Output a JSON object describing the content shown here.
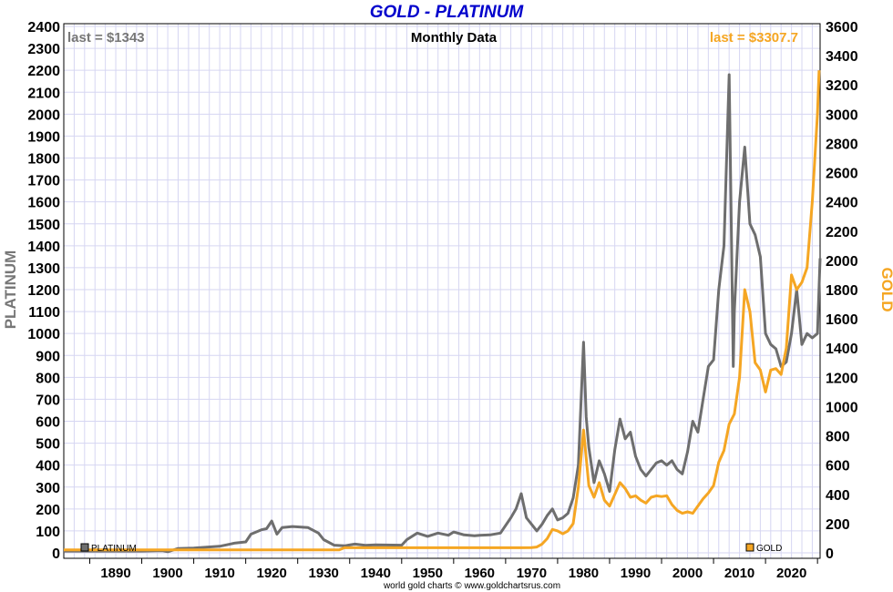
{
  "chart_data": {
    "type": "line",
    "title": "GOLD - PLATINUM",
    "subtitle": "Monthly Data",
    "footer": "world gold charts © www.goldchartsrus.com",
    "x_range": [
      1880,
      2025.5
    ],
    "x_ticks": [
      1890,
      1900,
      1910,
      1920,
      1930,
      1940,
      1950,
      1960,
      1970,
      1980,
      1990,
      2000,
      2010,
      2020
    ],
    "grid": true,
    "left_axis": {
      "label": "PLATINUM",
      "range": [
        0,
        2400
      ],
      "ticks": [
        0,
        100,
        200,
        300,
        400,
        500,
        600,
        700,
        800,
        900,
        1000,
        1100,
        1200,
        1300,
        1400,
        1500,
        1600,
        1700,
        1800,
        1900,
        2000,
        2100,
        2200,
        2300,
        2400
      ]
    },
    "right_axis": {
      "label": "GOLD",
      "range": [
        0,
        3600
      ],
      "ticks": [
        0,
        200,
        400,
        600,
        800,
        1000,
        1200,
        1400,
        1600,
        1800,
        2000,
        2200,
        2400,
        2600,
        2800,
        3000,
        3200,
        3400,
        3600
      ]
    },
    "annotations": {
      "platinum_last": "last = $1343",
      "gold_last": "last = $3307.7"
    },
    "series": [
      {
        "name": "PLATINUM",
        "axis": "left",
        "color": "#6e6e6e",
        "points": [
          [
            1880,
            8
          ],
          [
            1888,
            8
          ],
          [
            1895,
            8
          ],
          [
            1899,
            10
          ],
          [
            1900,
            5
          ],
          [
            1902,
            20
          ],
          [
            1905,
            22
          ],
          [
            1910,
            30
          ],
          [
            1913,
            45
          ],
          [
            1915,
            50
          ],
          [
            1916,
            85
          ],
          [
            1918,
            105
          ],
          [
            1919,
            110
          ],
          [
            1920,
            145
          ],
          [
            1921,
            85
          ],
          [
            1922,
            115
          ],
          [
            1924,
            120
          ],
          [
            1927,
            115
          ],
          [
            1929,
            90
          ],
          [
            1930,
            60
          ],
          [
            1932,
            35
          ],
          [
            1934,
            32
          ],
          [
            1936,
            40
          ],
          [
            1938,
            34
          ],
          [
            1940,
            36
          ],
          [
            1945,
            35
          ],
          [
            1946,
            60
          ],
          [
            1948,
            90
          ],
          [
            1950,
            75
          ],
          [
            1952,
            90
          ],
          [
            1954,
            80
          ],
          [
            1955,
            95
          ],
          [
            1957,
            82
          ],
          [
            1959,
            78
          ],
          [
            1960,
            80
          ],
          [
            1962,
            82
          ],
          [
            1964,
            90
          ],
          [
            1966,
            160
          ],
          [
            1967,
            200
          ],
          [
            1968,
            270
          ],
          [
            1969,
            160
          ],
          [
            1970,
            130
          ],
          [
            1971,
            100
          ],
          [
            1972,
            130
          ],
          [
            1973,
            170
          ],
          [
            1974,
            200
          ],
          [
            1975,
            150
          ],
          [
            1976,
            160
          ],
          [
            1977,
            180
          ],
          [
            1978,
            250
          ],
          [
            1979,
            400
          ],
          [
            1980,
            960
          ],
          [
            1980.5,
            620
          ],
          [
            1981,
            480
          ],
          [
            1982,
            320
          ],
          [
            1983,
            420
          ],
          [
            1984,
            360
          ],
          [
            1985,
            280
          ],
          [
            1986,
            470
          ],
          [
            1987,
            610
          ],
          [
            1988,
            520
          ],
          [
            1989,
            550
          ],
          [
            1990,
            440
          ],
          [
            1991,
            380
          ],
          [
            1992,
            350
          ],
          [
            1993,
            380
          ],
          [
            1994,
            410
          ],
          [
            1995,
            420
          ],
          [
            1996,
            400
          ],
          [
            1997,
            420
          ],
          [
            1998,
            380
          ],
          [
            1999,
            360
          ],
          [
            2000,
            460
          ],
          [
            2001,
            600
          ],
          [
            2002,
            550
          ],
          [
            2003,
            700
          ],
          [
            2004,
            850
          ],
          [
            2005,
            880
          ],
          [
            2006,
            1200
          ],
          [
            2007,
            1400
          ],
          [
            2008,
            2180
          ],
          [
            2008.8,
            850
          ],
          [
            2009,
            1100
          ],
          [
            2010,
            1600
          ],
          [
            2011,
            1850
          ],
          [
            2012,
            1500
          ],
          [
            2013,
            1450
          ],
          [
            2014,
            1350
          ],
          [
            2015,
            1000
          ],
          [
            2016,
            950
          ],
          [
            2017,
            930
          ],
          [
            2018,
            850
          ],
          [
            2019,
            870
          ],
          [
            2020,
            1000
          ],
          [
            2021,
            1200
          ],
          [
            2022,
            950
          ],
          [
            2023,
            1000
          ],
          [
            2024,
            980
          ],
          [
            2025,
            1000
          ],
          [
            2025.5,
            1343
          ]
        ]
      },
      {
        "name": "GOLD",
        "axis": "right",
        "color": "#f5a623",
        "points": [
          [
            1880,
            20.67
          ],
          [
            1933,
            20.67
          ],
          [
            1934,
            35
          ],
          [
            1968,
            35
          ],
          [
            1970,
            36
          ],
          [
            1971,
            40
          ],
          [
            1972,
            60
          ],
          [
            1973,
            97
          ],
          [
            1974,
            160
          ],
          [
            1975,
            150
          ],
          [
            1976,
            130
          ],
          [
            1977,
            150
          ],
          [
            1978,
            200
          ],
          [
            1979,
            450
          ],
          [
            1980,
            840
          ],
          [
            1980.5,
            650
          ],
          [
            1981,
            460
          ],
          [
            1982,
            380
          ],
          [
            1983,
            480
          ],
          [
            1984,
            360
          ],
          [
            1985,
            320
          ],
          [
            1986,
            400
          ],
          [
            1987,
            480
          ],
          [
            1988,
            440
          ],
          [
            1989,
            380
          ],
          [
            1990,
            390
          ],
          [
            1991,
            360
          ],
          [
            1992,
            340
          ],
          [
            1993,
            380
          ],
          [
            1994,
            390
          ],
          [
            1995,
            385
          ],
          [
            1996,
            390
          ],
          [
            1997,
            330
          ],
          [
            1998,
            290
          ],
          [
            1999,
            270
          ],
          [
            2000,
            280
          ],
          [
            2001,
            270
          ],
          [
            2002,
            320
          ],
          [
            2003,
            370
          ],
          [
            2004,
            410
          ],
          [
            2005,
            460
          ],
          [
            2006,
            620
          ],
          [
            2007,
            700
          ],
          [
            2008,
            880
          ],
          [
            2009,
            950
          ],
          [
            2010,
            1200
          ],
          [
            2011,
            1800
          ],
          [
            2012,
            1650
          ],
          [
            2013,
            1300
          ],
          [
            2014,
            1250
          ],
          [
            2015,
            1100
          ],
          [
            2016,
            1250
          ],
          [
            2017,
            1260
          ],
          [
            2018,
            1220
          ],
          [
            2019,
            1400
          ],
          [
            2020,
            1900
          ],
          [
            2021,
            1800
          ],
          [
            2022,
            1850
          ],
          [
            2023,
            1950
          ],
          [
            2024,
            2400
          ],
          [
            2025,
            3000
          ],
          [
            2025.3,
            3300
          ]
        ]
      }
    ],
    "legend": [
      "PLATINUM",
      "GOLD"
    ]
  }
}
